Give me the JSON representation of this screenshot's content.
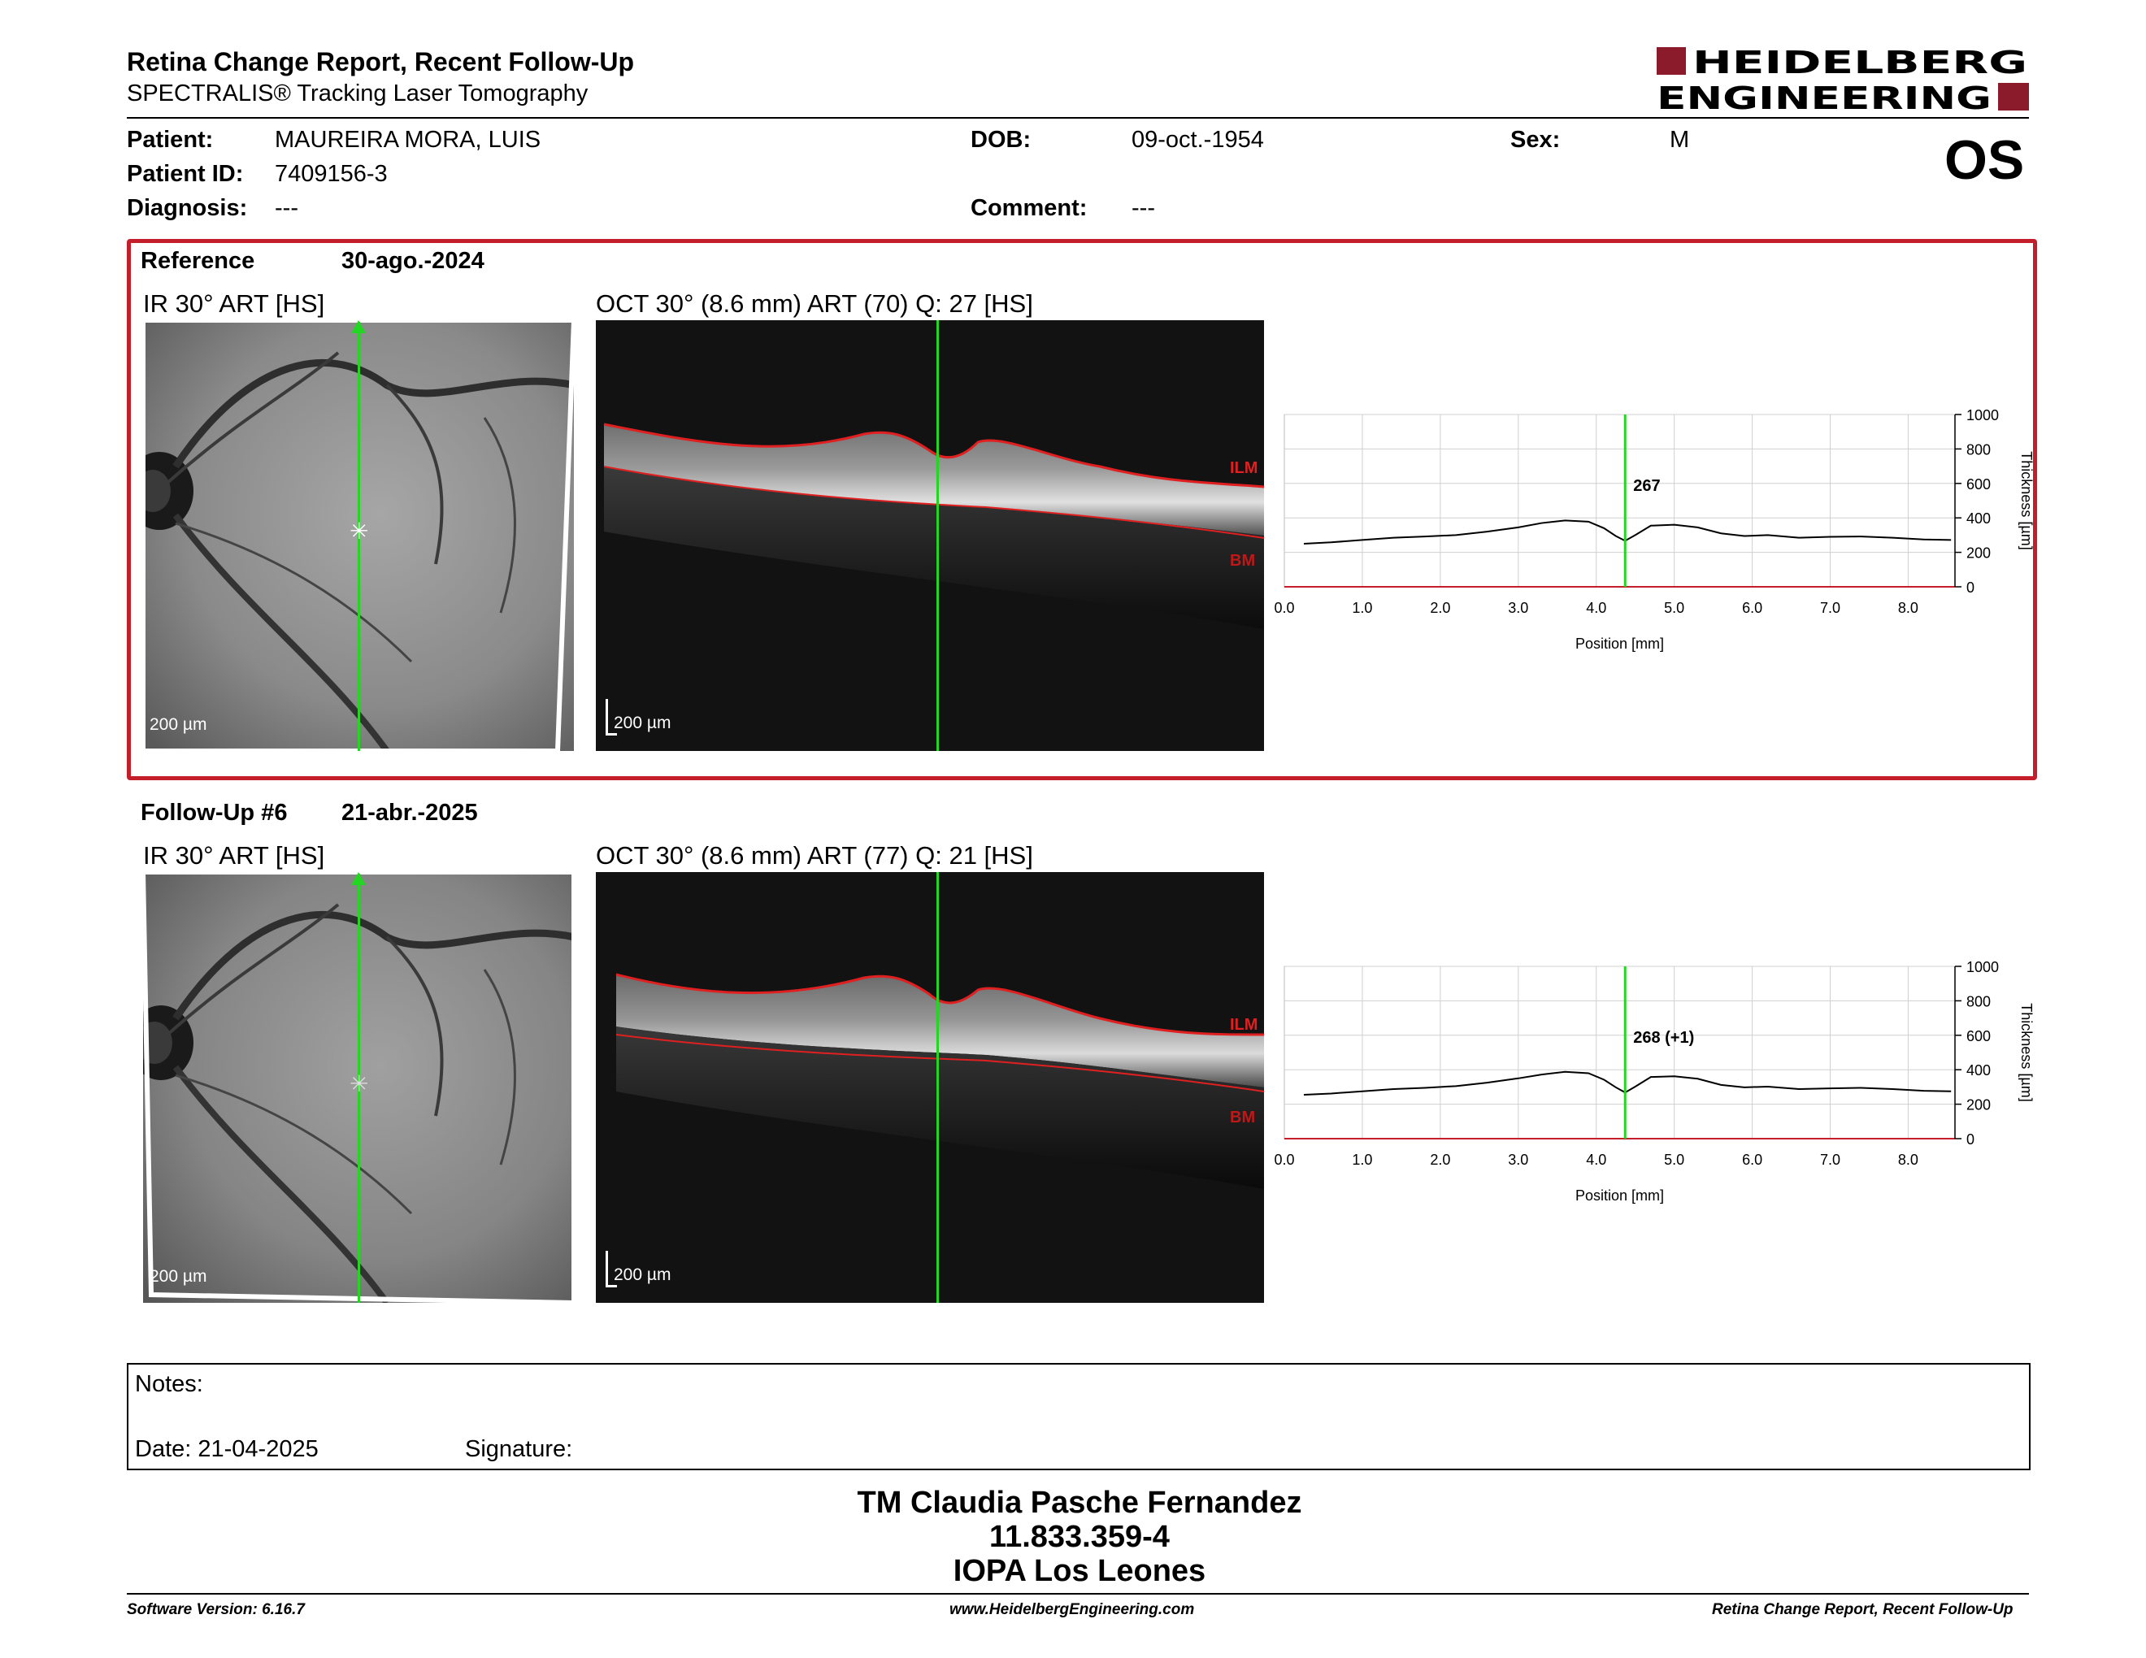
{
  "header": {
    "title": "Retina Change Report, Recent Follow-Up",
    "subtitle": "SPECTRALIS® Tracking Laser Tomography",
    "logo_line1": "HEIDELBERG",
    "logo_line2": "ENGINEERING",
    "brand_color": "#8b1a2b"
  },
  "patient": {
    "patient_label": "Patient:",
    "patient_value": "MAUREIRA MORA, LUIS",
    "id_label": "Patient ID:",
    "id_value": "7409156-3",
    "diagnosis_label": "Diagnosis:",
    "diagnosis_value": "---",
    "dob_label": "DOB:",
    "dob_value": "09-oct.-1954",
    "comment_label": "Comment:",
    "comment_value": "---",
    "sex_label": "Sex:",
    "sex_value": "M",
    "eye": "OS"
  },
  "reference": {
    "label": "Reference",
    "date": "30-ago.-2024",
    "ir_title": "IR 30° ART [HS]",
    "oct_title": "OCT 30° (8.6 mm) ART (70) Q: 27 [HS]",
    "scale_ir": "200 µm",
    "scale_oct": "200 µm",
    "layer_top": "ILM",
    "layer_bottom": "BM",
    "marker_value": "267",
    "frame_color": "#c41e2a"
  },
  "followup": {
    "label": "Follow-Up #6",
    "date": "21-abr.-2025",
    "ir_title": "IR 30° ART [HS]",
    "oct_title": "OCT 30° (8.6 mm) ART (77) Q: 21 [HS]",
    "scale_ir": "200 µm",
    "scale_oct": "200 µm",
    "layer_top": "ILM",
    "layer_bottom": "BM",
    "marker_value": "268 (+1)"
  },
  "chart_data": [
    {
      "type": "line",
      "xlabel": "Position [mm]",
      "ylabel": "Thickness [µm]",
      "xlim": [
        0.0,
        8.6
      ],
      "ylim": [
        0,
        1000
      ],
      "xticks": [
        "0.0",
        "1.0",
        "2.0",
        "3.0",
        "4.0",
        "5.0",
        "6.0",
        "7.0",
        "8.0"
      ],
      "yticks": [
        "0",
        "200",
        "400",
        "600",
        "800",
        "1000"
      ],
      "marker_x": 4.37,
      "marker_label": "267",
      "grid": true,
      "series": [
        {
          "x": [
            0.25,
            0.6,
            1.0,
            1.4,
            1.8,
            2.2,
            2.6,
            3.0,
            3.3,
            3.6,
            3.9,
            4.1,
            4.25,
            4.37,
            4.5,
            4.7,
            5.0,
            5.3,
            5.6,
            5.9,
            6.2,
            6.6,
            7.0,
            7.4,
            7.8,
            8.2,
            8.55
          ],
          "values": [
            250,
            258,
            272,
            285,
            292,
            300,
            320,
            345,
            370,
            385,
            378,
            340,
            295,
            267,
            300,
            355,
            360,
            345,
            310,
            295,
            300,
            285,
            290,
            292,
            285,
            275,
            272
          ]
        }
      ]
    },
    {
      "type": "line",
      "xlabel": "Position [mm]",
      "ylabel": "Thickness [µm]",
      "xlim": [
        0.0,
        8.6
      ],
      "ylim": [
        0,
        1000
      ],
      "xticks": [
        "0.0",
        "1.0",
        "2.0",
        "3.0",
        "4.0",
        "5.0",
        "6.0",
        "7.0",
        "8.0"
      ],
      "yticks": [
        "0",
        "200",
        "400",
        "600",
        "800",
        "1000"
      ],
      "marker_x": 4.37,
      "marker_label": "268 (+1)",
      "grid": true,
      "series": [
        {
          "x": [
            0.25,
            0.6,
            1.0,
            1.4,
            1.8,
            2.2,
            2.6,
            3.0,
            3.3,
            3.6,
            3.9,
            4.1,
            4.25,
            4.37,
            4.5,
            4.7,
            5.0,
            5.3,
            5.6,
            5.9,
            6.2,
            6.6,
            7.0,
            7.4,
            7.8,
            8.2,
            8.55
          ],
          "values": [
            255,
            262,
            275,
            288,
            295,
            305,
            325,
            350,
            372,
            388,
            380,
            342,
            298,
            268,
            302,
            358,
            362,
            348,
            312,
            298,
            302,
            288,
            292,
            295,
            288,
            278,
            275
          ]
        }
      ]
    }
  ],
  "notes": {
    "label": "Notes:",
    "date_label": "Date: 21-04-2025",
    "signature_label": "Signature:"
  },
  "signoff": {
    "name": "TM Claudia Pasche Fernandez",
    "id": "11.833.359-4",
    "place": "IOPA Los Leones"
  },
  "footer": {
    "software": "Software Version: 6.16.7",
    "website": "www.HeidelbergEngineering.com",
    "report": "Retina Change Report, Recent Follow-Up"
  }
}
